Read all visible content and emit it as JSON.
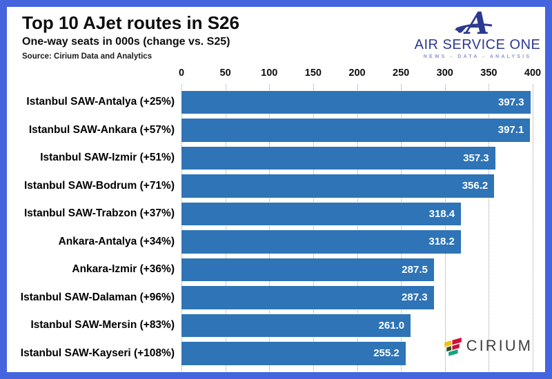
{
  "header": {
    "title": "Top 10 AJet routes in S26",
    "subtitle": "One-way seats in 000s (change vs. S25)",
    "source": "Source: Cirium Data and Analytics"
  },
  "logos": {
    "air_service_one": {
      "name": "AIR SERVICE ONE",
      "tagline": "NEWS - DATA - ANALYSIS",
      "text_color": "#2b3990",
      "tagline_color": "#8c96cd"
    },
    "cirium": {
      "name": "CIRIUM",
      "text_color": "#3f3f3f",
      "mark_colors": [
        "#f2c012",
        "#d5103c",
        "#2e4b1f",
        "#c81039",
        "#14a57c"
      ]
    }
  },
  "frame": {
    "border_color": "#4565df"
  },
  "chart_data": {
    "type": "bar",
    "orientation": "horizontal",
    "title": "Top 10 AJet routes in S26",
    "subtitle": "One-way seats in 000s (change vs. S25)",
    "categories": [
      "Istanbul SAW-Antalya (+25%)",
      "Istanbul SAW-Ankara (+57%)",
      "Istanbul SAW-Izmir (+51%)",
      "Istanbul SAW-Bodrum (+71%)",
      "Istanbul SAW-Trabzon (+37%)",
      "Ankara-Antalya (+34%)",
      "Ankara-Izmir (+36%)",
      "Istanbul SAW-Dalaman (+96%)",
      "Istanbul SAW-Mersin (+83%)",
      "Istanbul SAW-Kayseri (+108%)"
    ],
    "values": [
      397.3,
      397.1,
      357.3,
      356.2,
      318.4,
      318.2,
      287.5,
      287.3,
      261.0,
      255.2
    ],
    "value_labels": [
      "397.3",
      "397.1",
      "357.3",
      "356.2",
      "318.4",
      "318.2",
      "287.5",
      "287.3",
      "261.0",
      "255.2"
    ],
    "xlim": [
      0,
      400
    ],
    "x_ticks": [
      0,
      50,
      100,
      150,
      200,
      250,
      300,
      350,
      400
    ],
    "bar_color": "#2e74b6",
    "value_label_color": "#ffffff",
    "gridlines": "dotted-vertical",
    "axis_position": "top",
    "legend": "none"
  }
}
